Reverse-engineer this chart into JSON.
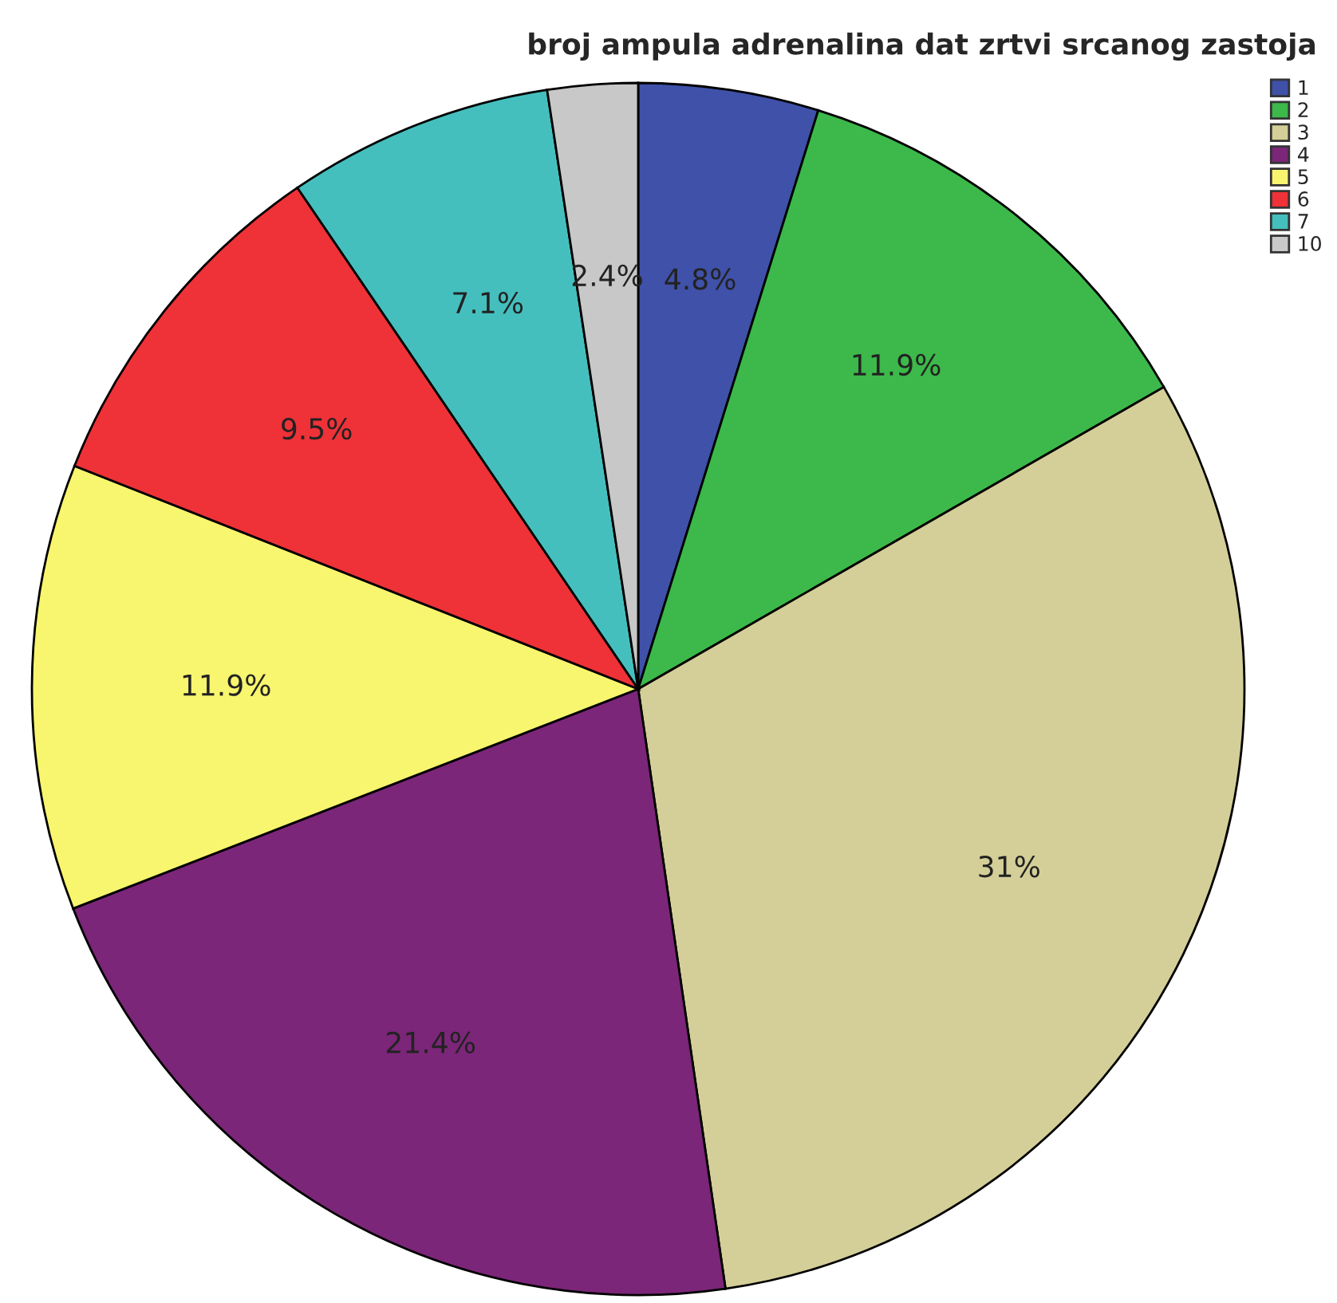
{
  "chart_data": {
    "type": "pie",
    "title": "broj ampula adrenalina dat zrtvi srcanog zastoja",
    "categories": [
      "1",
      "2",
      "3",
      "4",
      "5",
      "6",
      "7",
      "10"
    ],
    "values": [
      4.8,
      11.9,
      31,
      21.4,
      11.9,
      9.5,
      7.1,
      2.4
    ],
    "value_labels": [
      "4.8%",
      "11.9%",
      "31%",
      "21.4%",
      "11.9%",
      "9.5%",
      "7.1%",
      "2.4%"
    ],
    "colors": [
      "#3f51a8",
      "#3cb94a",
      "#d4cf98",
      "#7b2678",
      "#f8f56e",
      "#ee3238",
      "#45bfbe",
      "#c8c8c8"
    ],
    "legend": "top right"
  }
}
